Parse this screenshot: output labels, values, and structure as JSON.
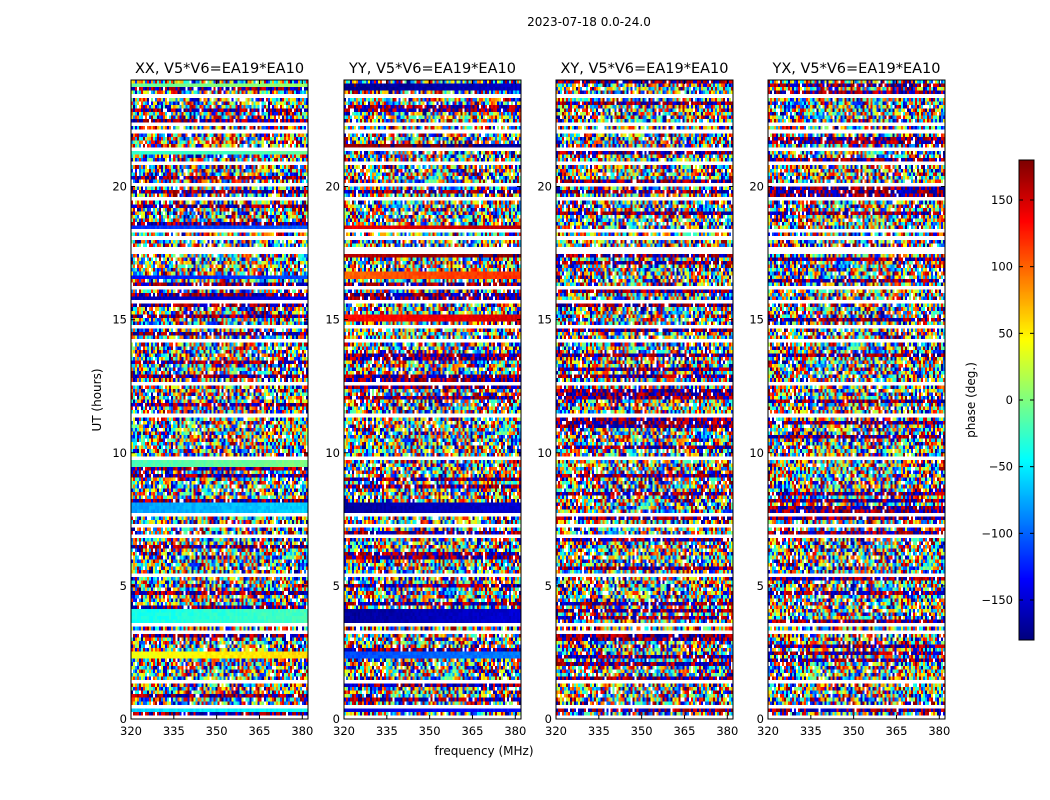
{
  "chart_data": {
    "type": "heatmap",
    "suptitle": "2023-07-18 0.0-24.0",
    "xlabel": "frequency (MHz)",
    "ylabel": "UT (hours)",
    "xlim": [
      320,
      382
    ],
    "ylim": [
      0,
      24
    ],
    "xticks": [
      320,
      335,
      350,
      365,
      380
    ],
    "yticks": [
      0,
      5,
      10,
      15,
      20
    ],
    "colormap": "jet",
    "colorbar": {
      "label": "phase (deg.)",
      "vmin": -180,
      "vmax": 180,
      "ticks": [
        150,
        100,
        50,
        0,
        -50,
        -100,
        -150
      ],
      "tick_labels": [
        "150",
        "100",
        "50",
        "0",
        "−50",
        "−100",
        "−150"
      ]
    },
    "blank_hours": [
      0.1,
      0.4,
      0.5,
      1.45,
      3.3,
      3.55,
      5.45,
      6.85,
      7.3,
      7.7,
      9.8,
      11.45,
      12.6,
      14.2,
      14.75,
      15.6,
      16.2,
      17.5,
      17.7,
      18.05,
      18.3,
      19.5,
      20.05,
      20.9,
      21.45,
      22.1,
      22.3,
      23.45
    ],
    "panels": [
      {
        "title": "XX, V5*V6=EA19*EA10",
        "coherent_bands": [
          {
            "t0": 0.3,
            "t1": 0.5,
            "phase": -60
          },
          {
            "t0": 2.2,
            "t1": 2.5,
            "phase": 40
          },
          {
            "t0": 3.55,
            "t1": 4.1,
            "phase": -40
          },
          {
            "t0": 7.75,
            "t1": 8.1,
            "phase": -80
          },
          {
            "t0": 9.45,
            "t1": 9.7,
            "phase": -20
          },
          {
            "t0": 15.7,
            "t1": 15.85,
            "phase": -160
          },
          {
            "t0": 16.55,
            "t1": 16.7,
            "phase": -130
          },
          {
            "t0": 18.25,
            "t1": 18.5,
            "phase": -120
          },
          {
            "t0": 21.25,
            "t1": 21.5,
            "phase": -30
          },
          {
            "t0": 23.7,
            "t1": 23.9,
            "phase": -10
          }
        ]
      },
      {
        "title": "YY, V5*V6=EA19*EA10",
        "coherent_bands": [
          {
            "t0": 0.3,
            "t1": 0.45,
            "phase": -150
          },
          {
            "t0": 2.2,
            "t1": 2.5,
            "phase": -110
          },
          {
            "t0": 3.6,
            "t1": 4.1,
            "phase": -170
          },
          {
            "t0": 7.75,
            "t1": 8.1,
            "phase": -170
          },
          {
            "t0": 15.0,
            "t1": 15.15,
            "phase": 130
          },
          {
            "t0": 16.6,
            "t1": 16.8,
            "phase": 100
          },
          {
            "t0": 17.3,
            "t1": 17.5,
            "phase": 160
          },
          {
            "t0": 18.3,
            "t1": 18.55,
            "phase": 140
          },
          {
            "t0": 21.3,
            "t1": 21.6,
            "phase": 170
          },
          {
            "t0": 23.6,
            "t1": 23.8,
            "phase": -175
          }
        ]
      },
      {
        "title": "XY, V5*V6=EA19*EA10",
        "coherent_bands": []
      },
      {
        "title": "YX, V5*V6=EA19*EA10",
        "coherent_bands": []
      }
    ]
  }
}
